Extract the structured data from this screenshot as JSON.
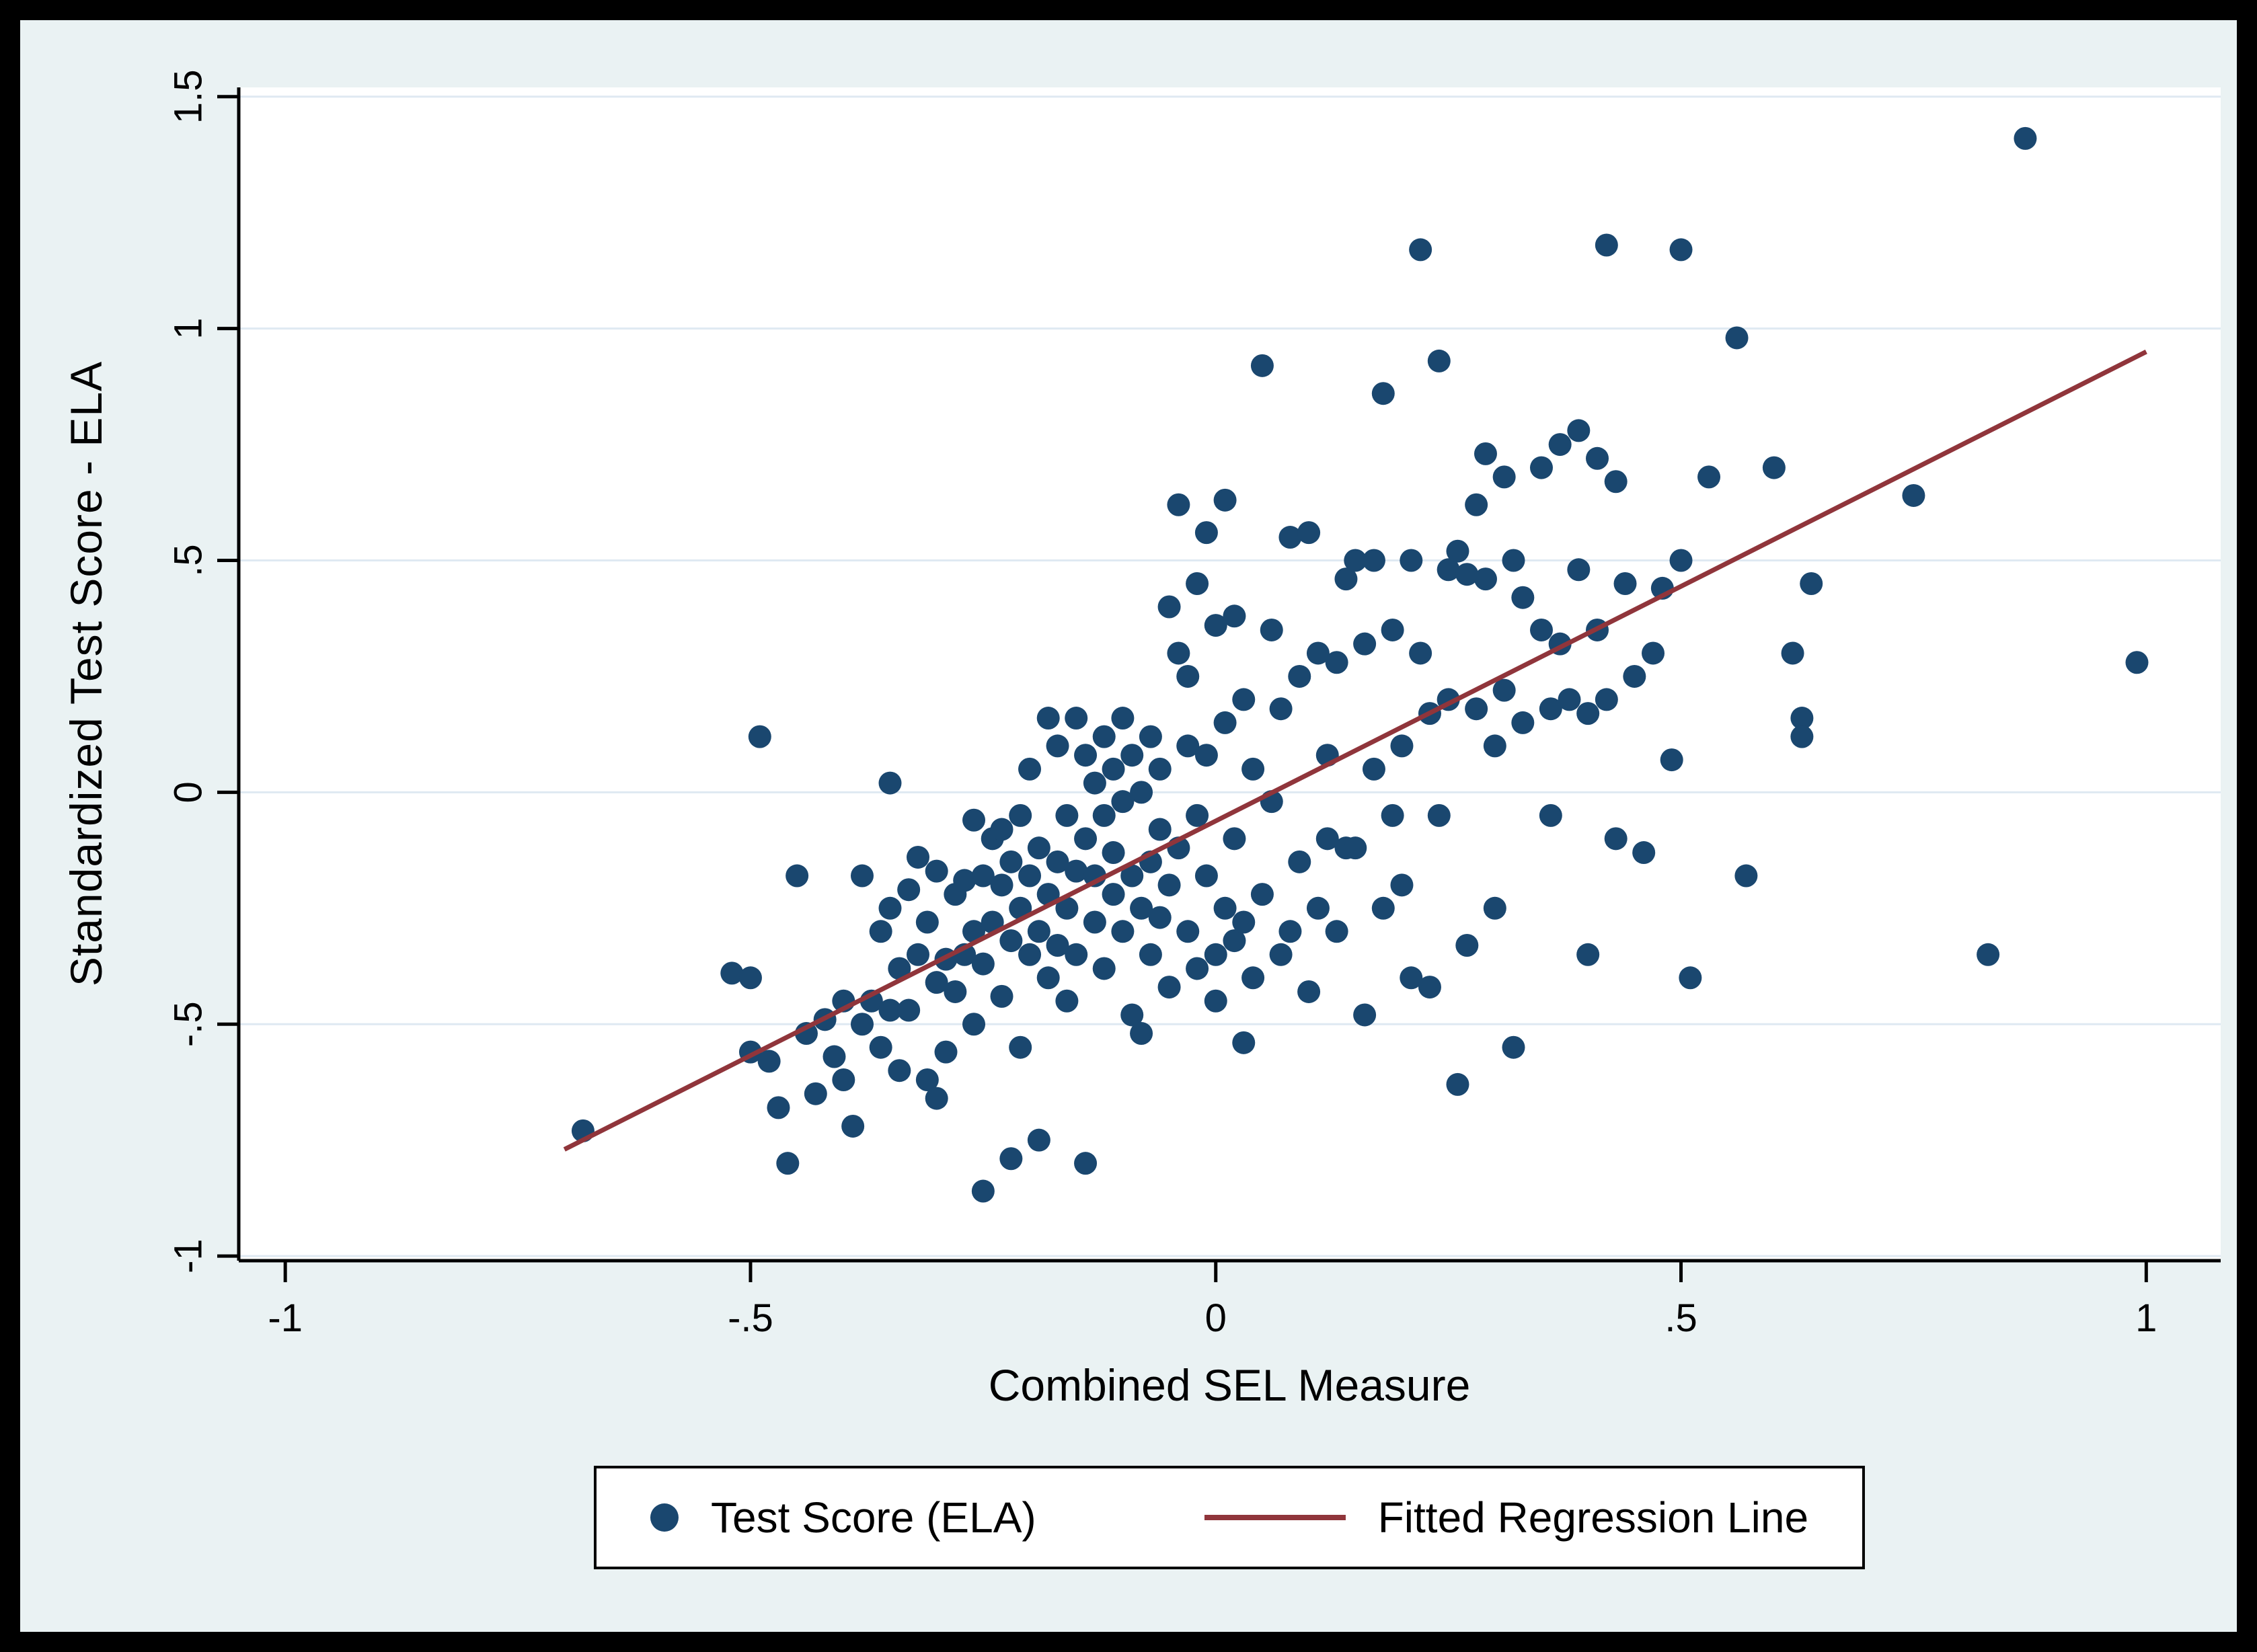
{
  "chart_data": {
    "type": "scatter",
    "title": "",
    "xlabel": "Combined SEL Measure",
    "ylabel": "Standardized Test Score - ELA",
    "xlim": [
      -1.05,
      1.08
    ],
    "ylim": [
      -1.01,
      1.52
    ],
    "xticks": [
      -1,
      -0.5,
      0,
      0.5,
      1
    ],
    "xtick_labels": [
      "-1",
      "-.5",
      "0",
      ".5",
      "1"
    ],
    "yticks": [
      -1,
      -0.5,
      0,
      0.5,
      1,
      1.5
    ],
    "ytick_labels": [
      "-1",
      "-.5",
      "0",
      ".5",
      "1",
      "1.5"
    ],
    "grid": "horizontal",
    "legend": {
      "position": "bottom",
      "entries": [
        {
          "label": "Test Score (ELA)",
          "type": "marker"
        },
        {
          "label": "Fitted Regression Line",
          "type": "line"
        }
      ]
    },
    "colors": {
      "points": "#1a476f",
      "line": "#90353b",
      "background": "#eaf2f3",
      "plot_bg": "#ffffff",
      "grid": "#dfe9f2",
      "axis": "#000000"
    },
    "regression_line": {
      "x": [
        -0.7,
        1.0
      ],
      "y": [
        -0.77,
        0.95
      ]
    },
    "points": [
      [
        -0.68,
        -0.73
      ],
      [
        -0.52,
        -0.39
      ],
      [
        -0.5,
        -0.4
      ],
      [
        -0.5,
        -0.56
      ],
      [
        -0.49,
        0.12
      ],
      [
        -0.48,
        -0.58
      ],
      [
        -0.47,
        -0.68
      ],
      [
        -0.46,
        -0.8
      ],
      [
        -0.45,
        -0.18
      ],
      [
        -0.44,
        -0.52
      ],
      [
        -0.43,
        -0.65
      ],
      [
        -0.42,
        -0.49
      ],
      [
        -0.41,
        -0.57
      ],
      [
        -0.4,
        -0.62
      ],
      [
        -0.4,
        -0.45
      ],
      [
        -0.39,
        -0.72
      ],
      [
        -0.38,
        -0.5
      ],
      [
        -0.38,
        -0.18
      ],
      [
        -0.37,
        -0.45
      ],
      [
        -0.36,
        -0.3
      ],
      [
        -0.36,
        -0.55
      ],
      [
        -0.35,
        0.02
      ],
      [
        -0.35,
        -0.25
      ],
      [
        -0.35,
        -0.47
      ],
      [
        -0.34,
        -0.6
      ],
      [
        -0.34,
        -0.38
      ],
      [
        -0.33,
        -0.21
      ],
      [
        -0.33,
        -0.47
      ],
      [
        -0.32,
        -0.14
      ],
      [
        -0.32,
        -0.35
      ],
      [
        -0.31,
        -0.62
      ],
      [
        -0.31,
        -0.28
      ],
      [
        -0.3,
        -0.66
      ],
      [
        -0.3,
        -0.41
      ],
      [
        -0.3,
        -0.17
      ],
      [
        -0.29,
        -0.36
      ],
      [
        -0.29,
        -0.56
      ],
      [
        -0.28,
        -0.22
      ],
      [
        -0.28,
        -0.43
      ],
      [
        -0.27,
        -0.19
      ],
      [
        -0.27,
        -0.35
      ],
      [
        -0.26,
        -0.06
      ],
      [
        -0.26,
        -0.3
      ],
      [
        -0.26,
        -0.5
      ],
      [
        -0.25,
        -0.86
      ],
      [
        -0.25,
        -0.18
      ],
      [
        -0.25,
        -0.37
      ],
      [
        -0.24,
        -0.1
      ],
      [
        -0.24,
        -0.28
      ],
      [
        -0.23,
        -0.2
      ],
      [
        -0.23,
        -0.44
      ],
      [
        -0.23,
        -0.08
      ],
      [
        -0.22,
        -0.79
      ],
      [
        -0.22,
        -0.32
      ],
      [
        -0.22,
        -0.15
      ],
      [
        -0.21,
        -0.25
      ],
      [
        -0.21,
        -0.05
      ],
      [
        -0.21,
        -0.55
      ],
      [
        -0.2,
        -0.18
      ],
      [
        -0.2,
        -0.35
      ],
      [
        -0.2,
        0.05
      ],
      [
        -0.19,
        -0.12
      ],
      [
        -0.19,
        -0.3
      ],
      [
        -0.19,
        -0.75
      ],
      [
        -0.18,
        -0.22
      ],
      [
        -0.18,
        0.16
      ],
      [
        -0.18,
        -0.4
      ],
      [
        -0.17,
        -0.15
      ],
      [
        -0.17,
        -0.33
      ],
      [
        -0.17,
        0.1
      ],
      [
        -0.16,
        -0.25
      ],
      [
        -0.16,
        -0.05
      ],
      [
        -0.16,
        -0.45
      ],
      [
        -0.15,
        -0.17
      ],
      [
        -0.15,
        0.16
      ],
      [
        -0.15,
        -0.35
      ],
      [
        -0.14,
        -0.8
      ],
      [
        -0.14,
        -0.1
      ],
      [
        -0.14,
        0.08
      ],
      [
        -0.13,
        -0.28
      ],
      [
        -0.13,
        0.02
      ],
      [
        -0.13,
        -0.18
      ],
      [
        -0.12,
        -0.05
      ],
      [
        -0.12,
        0.12
      ],
      [
        -0.12,
        -0.38
      ],
      [
        -0.11,
        -0.22
      ],
      [
        -0.11,
        0.05
      ],
      [
        -0.11,
        -0.13
      ],
      [
        -0.1,
        0.16
      ],
      [
        -0.1,
        -0.3
      ],
      [
        -0.1,
        -0.02
      ],
      [
        -0.09,
        -0.18
      ],
      [
        -0.09,
        0.08
      ],
      [
        -0.09,
        -0.48
      ],
      [
        -0.08,
        -0.25
      ],
      [
        -0.08,
        0.0
      ],
      [
        -0.08,
        -0.52
      ],
      [
        -0.07,
        -0.15
      ],
      [
        -0.07,
        0.12
      ],
      [
        -0.07,
        -0.35
      ],
      [
        -0.06,
        -0.08
      ],
      [
        -0.06,
        -0.27
      ],
      [
        -0.06,
        0.05
      ],
      [
        -0.05,
        -0.42
      ],
      [
        -0.05,
        -0.2
      ],
      [
        -0.05,
        0.4
      ],
      [
        -0.04,
        0.62
      ],
      [
        -0.04,
        -0.12
      ],
      [
        -0.04,
        0.3
      ],
      [
        -0.03,
        -0.3
      ],
      [
        -0.03,
        0.25
      ],
      [
        -0.03,
        0.1
      ],
      [
        -0.02,
        -0.05
      ],
      [
        -0.02,
        0.45
      ],
      [
        -0.02,
        -0.38
      ],
      [
        -0.01,
        0.56
      ],
      [
        -0.01,
        -0.18
      ],
      [
        -0.01,
        0.08
      ],
      [
        0.0,
        -0.35
      ],
      [
        0.0,
        0.36
      ],
      [
        0.0,
        -0.45
      ],
      [
        0.01,
        0.63
      ],
      [
        0.01,
        -0.25
      ],
      [
        0.01,
        0.15
      ],
      [
        0.02,
        -0.32
      ],
      [
        0.02,
        0.38
      ],
      [
        0.02,
        -0.1
      ],
      [
        0.03,
        -0.54
      ],
      [
        0.03,
        0.2
      ],
      [
        0.03,
        -0.28
      ],
      [
        0.04,
        0.05
      ],
      [
        0.04,
        -0.4
      ],
      [
        0.05,
        0.92
      ],
      [
        0.05,
        -0.22
      ],
      [
        0.06,
        0.35
      ],
      [
        0.06,
        -0.02
      ],
      [
        0.07,
        0.18
      ],
      [
        0.07,
        -0.35
      ],
      [
        0.08,
        -0.3
      ],
      [
        0.08,
        0.55
      ],
      [
        0.09,
        -0.15
      ],
      [
        0.09,
        0.25
      ],
      [
        0.1,
        -0.43
      ],
      [
        0.1,
        0.56
      ],
      [
        0.11,
        -0.25
      ],
      [
        0.11,
        0.3
      ],
      [
        0.12,
        -0.1
      ],
      [
        0.12,
        0.08
      ],
      [
        0.13,
        0.28
      ],
      [
        0.13,
        -0.3
      ],
      [
        0.14,
        0.46
      ],
      [
        0.14,
        -0.12
      ],
      [
        0.15,
        0.5
      ],
      [
        0.15,
        -0.12
      ],
      [
        0.16,
        0.32
      ],
      [
        0.16,
        -0.48
      ],
      [
        0.17,
        0.5
      ],
      [
        0.17,
        0.05
      ],
      [
        0.18,
        0.86
      ],
      [
        0.18,
        -0.25
      ],
      [
        0.19,
        0.35
      ],
      [
        0.19,
        -0.05
      ],
      [
        0.2,
        0.1
      ],
      [
        0.2,
        -0.2
      ],
      [
        0.21,
        0.5
      ],
      [
        0.21,
        -0.4
      ],
      [
        0.22,
        1.17
      ],
      [
        0.22,
        0.3
      ],
      [
        0.23,
        -0.42
      ],
      [
        0.23,
        0.17
      ],
      [
        0.24,
        0.93
      ],
      [
        0.24,
        -0.05
      ],
      [
        0.25,
        0.48
      ],
      [
        0.25,
        0.2
      ],
      [
        0.26,
        -0.63
      ],
      [
        0.26,
        0.52
      ],
      [
        0.27,
        0.47
      ],
      [
        0.27,
        -0.33
      ],
      [
        0.28,
        0.62
      ],
      [
        0.28,
        0.18
      ],
      [
        0.29,
        0.73
      ],
      [
        0.29,
        0.46
      ],
      [
        0.3,
        0.1
      ],
      [
        0.3,
        -0.25
      ],
      [
        0.31,
        0.68
      ],
      [
        0.31,
        0.22
      ],
      [
        0.32,
        0.5
      ],
      [
        0.32,
        -0.55
      ],
      [
        0.33,
        0.42
      ],
      [
        0.33,
        0.15
      ],
      [
        0.35,
        0.35
      ],
      [
        0.35,
        0.7
      ],
      [
        0.36,
        0.18
      ],
      [
        0.36,
        -0.05
      ],
      [
        0.37,
        0.75
      ],
      [
        0.37,
        0.32
      ],
      [
        0.38,
        0.2
      ],
      [
        0.39,
        0.78
      ],
      [
        0.39,
        0.48
      ],
      [
        0.4,
        0.17
      ],
      [
        0.4,
        -0.35
      ],
      [
        0.41,
        0.72
      ],
      [
        0.41,
        0.35
      ],
      [
        0.42,
        1.18
      ],
      [
        0.42,
        0.2
      ],
      [
        0.43,
        0.67
      ],
      [
        0.43,
        -0.1
      ],
      [
        0.44,
        0.45
      ],
      [
        0.45,
        0.25
      ],
      [
        0.46,
        -0.13
      ],
      [
        0.47,
        0.3
      ],
      [
        0.48,
        0.44
      ],
      [
        0.49,
        0.07
      ],
      [
        0.5,
        1.17
      ],
      [
        0.5,
        0.5
      ],
      [
        0.51,
        -0.4
      ],
      [
        0.53,
        0.68
      ],
      [
        0.56,
        0.98
      ],
      [
        0.57,
        -0.18
      ],
      [
        0.6,
        0.7
      ],
      [
        0.62,
        0.3
      ],
      [
        0.63,
        0.16
      ],
      [
        0.63,
        0.12
      ],
      [
        0.64,
        0.45
      ],
      [
        0.75,
        0.64
      ],
      [
        0.83,
        -0.35
      ],
      [
        0.87,
        1.41
      ],
      [
        0.99,
        0.28
      ]
    ]
  }
}
